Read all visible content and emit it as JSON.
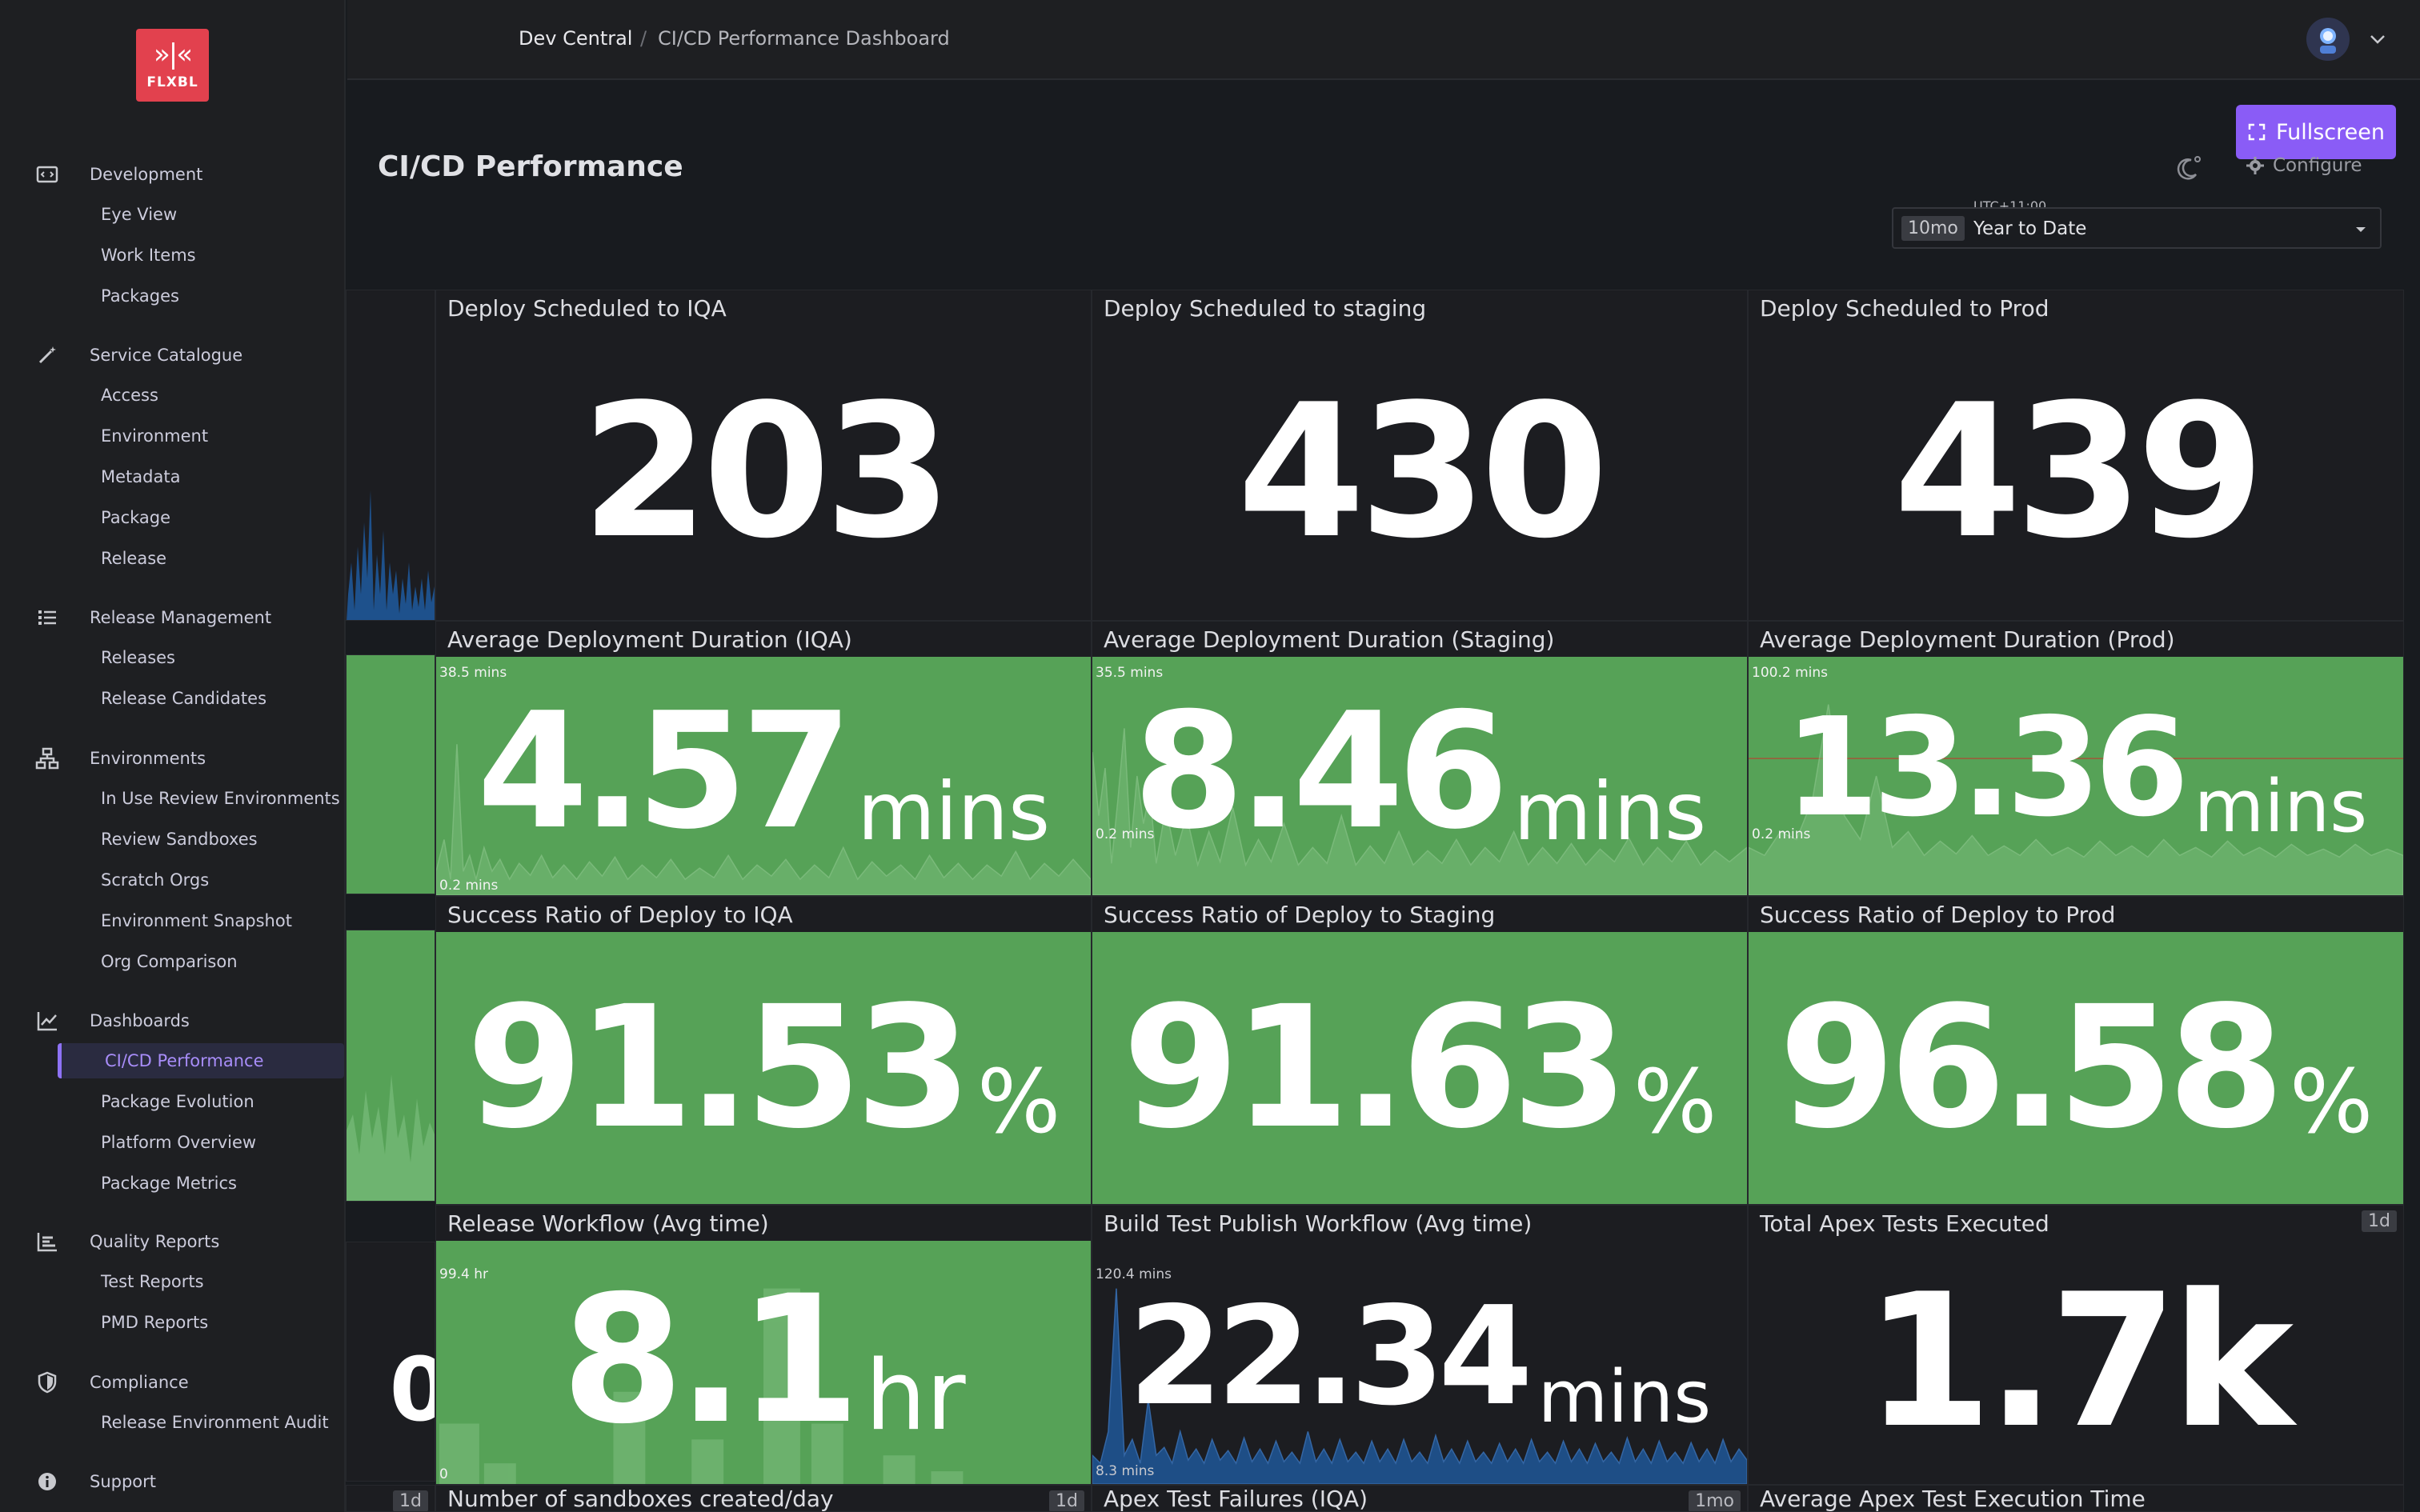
{
  "logo": {
    "text": "FLXBL",
    "mark": "»|«"
  },
  "sidebar": {
    "groups": [
      {
        "label": "Development",
        "icon": "code-icon",
        "items": [
          "Eye View",
          "Work Items",
          "Packages"
        ]
      },
      {
        "label": "Service Catalogue",
        "icon": "magic-wand-icon",
        "items": [
          "Access",
          "Environment",
          "Metadata",
          "Package",
          "Release"
        ]
      },
      {
        "label": "Release Management",
        "icon": "checklist-icon",
        "items": [
          "Releases",
          "Release Candidates"
        ]
      },
      {
        "label": "Environments",
        "icon": "sitemap-icon",
        "items": [
          "In Use Review Environments",
          "Review Sandboxes",
          "Scratch Orgs",
          "Environment Snapshot",
          "Org Comparison"
        ]
      },
      {
        "label": "Dashboards",
        "icon": "chart-line-icon",
        "items": [
          "CI/CD Performance",
          "Package Evolution",
          "Platform Overview",
          "Package Metrics"
        ]
      },
      {
        "label": "Quality Reports",
        "icon": "bar-chart-icon",
        "items": [
          "Test Reports",
          "PMD Reports"
        ]
      },
      {
        "label": "Compliance",
        "icon": "shield-icon",
        "items": [
          "Release Environment Audit"
        ]
      },
      {
        "label": "Support",
        "icon": "info-icon",
        "items": []
      }
    ],
    "active_item": "CI/CD Performance"
  },
  "breadcrumb": {
    "root": "Dev Central",
    "separator": "/",
    "page": "CI/CD Performance Dashboard"
  },
  "header": {
    "title": "CI/CD Performance",
    "fullscreen_label": "Fullscreen",
    "configure_label": "Configure",
    "timezone": "UTC+11:00",
    "time_badge": "10mo",
    "time_range": "Year to Date"
  },
  "panels": {
    "deploy_iqa": {
      "title": "Deploy Scheduled to IQA",
      "value": "203"
    },
    "deploy_staging": {
      "title": "Deploy Scheduled to staging",
      "value": "430"
    },
    "deploy_prod": {
      "title": "Deploy Scheduled to Prod",
      "value": "439"
    },
    "avg_iqa": {
      "title": "Average Deployment Duration (IQA)",
      "value": "4.57",
      "unit": "mins",
      "max_label": "38.5 mins",
      "min_label": "0.2 mins"
    },
    "avg_staging": {
      "title": "Average Deployment Duration (Staging)",
      "value": "8.46",
      "unit": "mins",
      "max_label": "35.5 mins",
      "min_label": "0.2 mins"
    },
    "avg_prod": {
      "title": "Average Deployment Duration (Prod)",
      "value": "13.36",
      "unit": "mins",
      "max_label": "100.2 mins",
      "min_label": "0.2 mins"
    },
    "succ_iqa": {
      "title": "Success Ratio of Deploy to IQA",
      "value": "91.53",
      "unit": "%"
    },
    "succ_staging": {
      "title": "Success Ratio of Deploy to Staging",
      "value": "91.63",
      "unit": "%"
    },
    "succ_prod": {
      "title": "Success Ratio of Deploy to Prod",
      "value": "96.58",
      "unit": "%"
    },
    "release_wf": {
      "title": "Release Workflow (Avg time)",
      "value": "8.1",
      "unit": "hr",
      "max_label": "99.4 hr",
      "min_label": "0"
    },
    "build_wf": {
      "title": "Build Test Publish Workflow (Avg time)",
      "value": "22.34",
      "unit": "mins",
      "max_label": "120.4 mins",
      "min_label": "8.3 mins"
    },
    "apex_tests": {
      "title": "Total Apex Tests Executed",
      "value": "1.7k",
      "badge": "1d"
    },
    "sandboxes": {
      "title": "Number of sandboxes created/day",
      "badge": "1d"
    },
    "apex_failures": {
      "title": "Apex Test Failures (IQA)",
      "badge": "1mo"
    },
    "apex_exec_time": {
      "title": "Average Apex Test Execution Time"
    },
    "left_strip_badge": "1d"
  },
  "colors": {
    "green": "#56a257",
    "accent": "#8a5cf6",
    "logo": "#e2414e"
  }
}
